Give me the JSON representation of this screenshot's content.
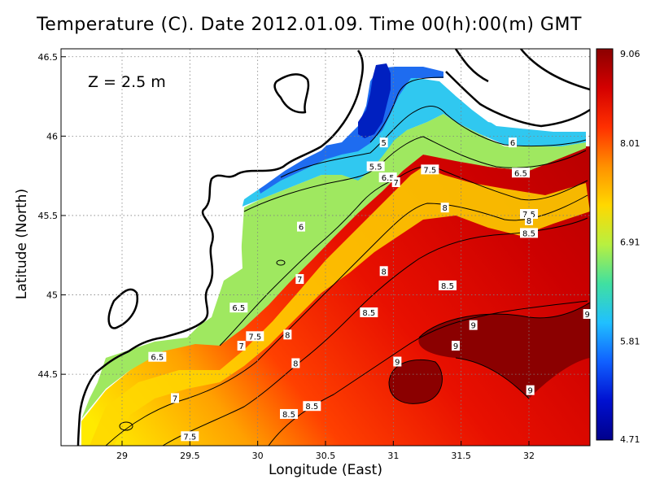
{
  "title": "Temperature (C). Date 2012.01.09. Time 00(h):00(m) GMT",
  "depth_label": "Z = 2.5 m",
  "xlabel": "Longitude (East)",
  "ylabel": "Latitude (North)",
  "chart_data": {
    "type": "heatmap",
    "variable": "Temperature (C)",
    "xlim": [
      28.55,
      32.45
    ],
    "ylim": [
      44.05,
      46.55
    ],
    "x_ticks": [
      29,
      29.5,
      30,
      30.5,
      31,
      31.5,
      32
    ],
    "x_tick_labels": [
      "29",
      "29.5",
      "30",
      "30.5",
      "31",
      "31.5",
      "32"
    ],
    "y_ticks": [
      44.5,
      45,
      45.5,
      46,
      46.5
    ],
    "y_tick_labels": [
      "44.5",
      "45",
      "45.5",
      "46",
      "46.5"
    ],
    "grid": true,
    "colorbar": {
      "min": 4.71,
      "max": 9.06,
      "tick_values": [
        9.06,
        8.01,
        6.91,
        5.81,
        4.71
      ],
      "tick_labels": [
        "9.06",
        "8.01",
        "6.91",
        "5.81",
        "4.71"
      ],
      "colors": [
        "#8b0000",
        "#d40000",
        "#ff3000",
        "#ff9000",
        "#ffd800",
        "#b8f040",
        "#40e0a0",
        "#20c0ff",
        "#1060ff",
        "#0010d0",
        "#00008b"
      ]
    },
    "contour_labels": [
      {
        "text": "5",
        "x": 30.93,
        "y": 45.96
      },
      {
        "text": "5.5",
        "x": 30.87,
        "y": 45.81
      },
      {
        "text": "6.5",
        "x": 30.96,
        "y": 45.74
      },
      {
        "text": "7",
        "x": 31.02,
        "y": 45.71
      },
      {
        "text": "7.5",
        "x": 31.27,
        "y": 45.79
      },
      {
        "text": "6",
        "x": 31.88,
        "y": 45.96
      },
      {
        "text": "6.5",
        "x": 31.94,
        "y": 45.77
      },
      {
        "text": "8",
        "x": 31.38,
        "y": 45.55
      },
      {
        "text": "7.5",
        "x": 32.0,
        "y": 45.51
      },
      {
        "text": "8",
        "x": 32.0,
        "y": 45.47
      },
      {
        "text": "8.5",
        "x": 32.0,
        "y": 45.39
      },
      {
        "text": "6",
        "x": 30.32,
        "y": 45.43
      },
      {
        "text": "7",
        "x": 30.31,
        "y": 45.1
      },
      {
        "text": "8",
        "x": 30.93,
        "y": 45.15
      },
      {
        "text": "8.5",
        "x": 31.4,
        "y": 45.06
      },
      {
        "text": "8.5",
        "x": 30.82,
        "y": 44.89
      },
      {
        "text": "6.5",
        "x": 29.86,
        "y": 44.92
      },
      {
        "text": "7.5",
        "x": 29.98,
        "y": 44.74
      },
      {
        "text": "7",
        "x": 29.88,
        "y": 44.68
      },
      {
        "text": "8",
        "x": 30.22,
        "y": 44.75
      },
      {
        "text": "8",
        "x": 30.28,
        "y": 44.57
      },
      {
        "text": "9",
        "x": 31.59,
        "y": 44.81
      },
      {
        "text": "9",
        "x": 31.46,
        "y": 44.68
      },
      {
        "text": "9",
        "x": 32.43,
        "y": 44.88
      },
      {
        "text": "9",
        "x": 31.03,
        "y": 44.58
      },
      {
        "text": "6.5",
        "x": 29.26,
        "y": 44.61
      },
      {
        "text": "9",
        "x": 32.01,
        "y": 44.4
      },
      {
        "text": "7",
        "x": 29.39,
        "y": 44.35
      },
      {
        "text": "8.5",
        "x": 30.4,
        "y": 44.3
      },
      {
        "text": "8.5",
        "x": 30.23,
        "y": 44.25
      },
      {
        "text": "7.5",
        "x": 29.5,
        "y": 44.11
      }
    ]
  }
}
